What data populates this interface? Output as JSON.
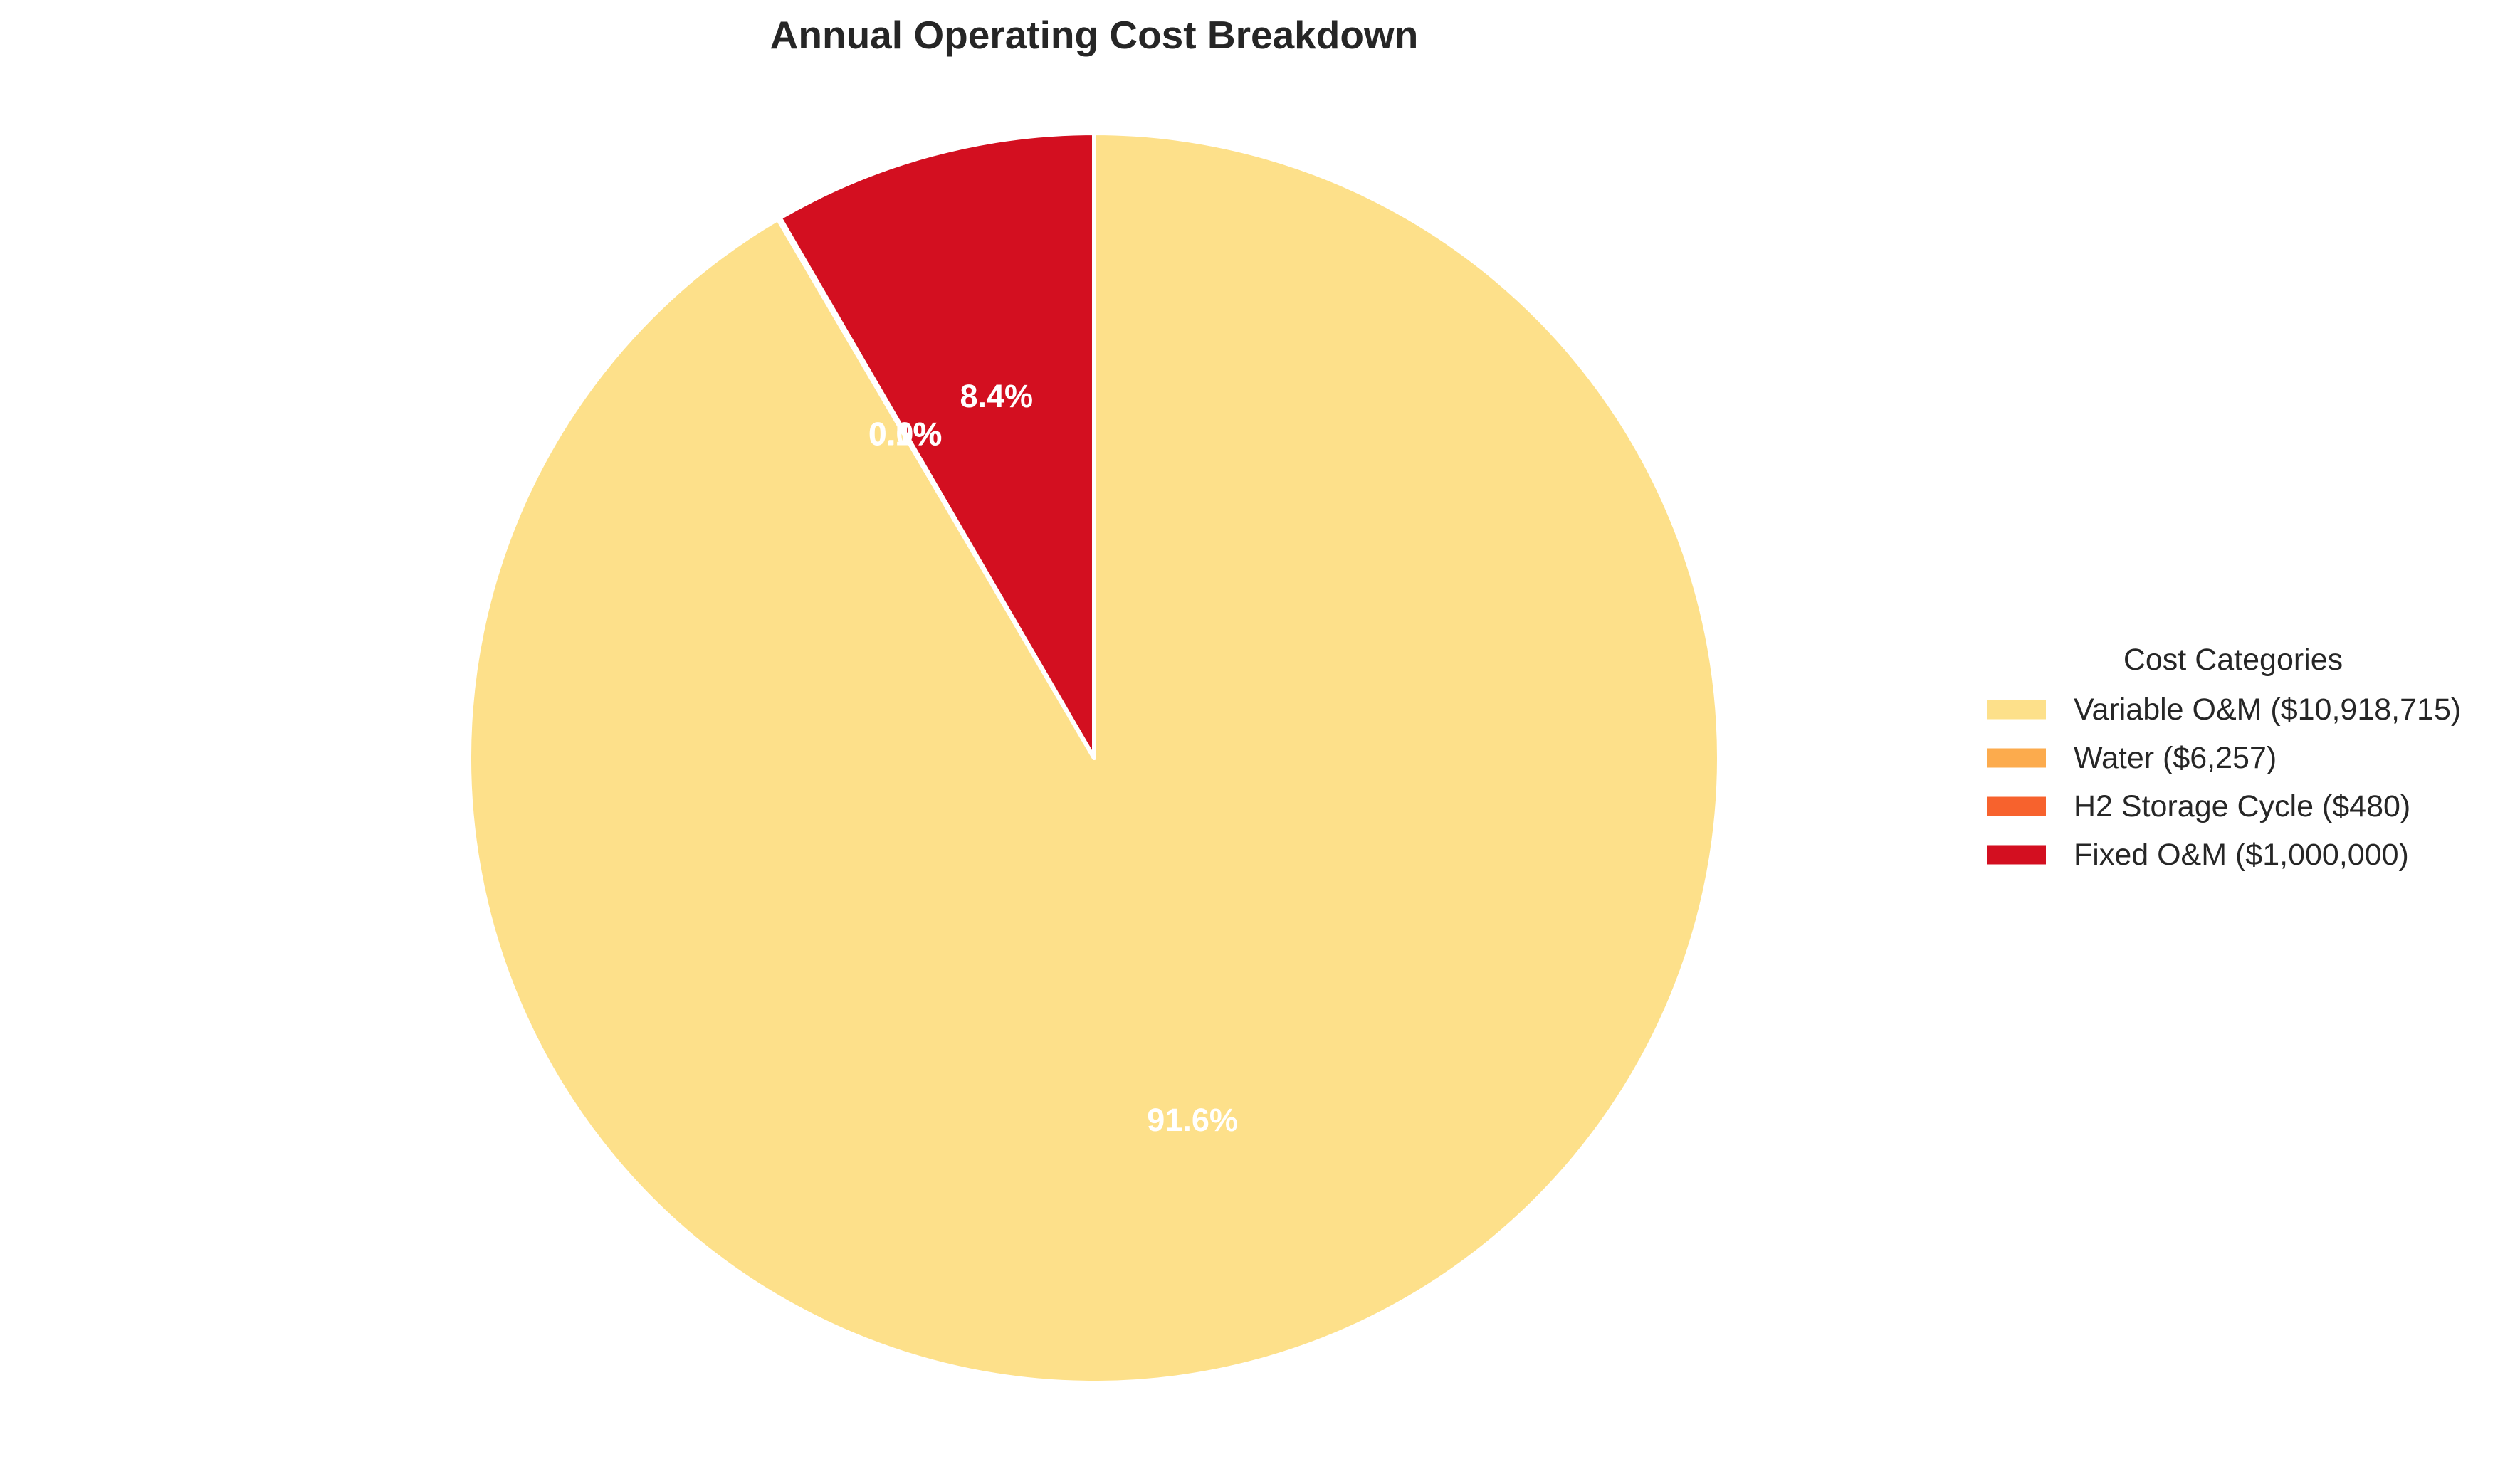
{
  "chart_data": {
    "type": "pie",
    "title": "Annual Operating Cost Breakdown",
    "legend_title": "Cost Categories",
    "legend_position": "right",
    "start_angle_deg": 90,
    "direction": "clockwise",
    "slices": [
      {
        "category": "Variable O&M",
        "value": 10918715,
        "label": "Variable O&M ($10,918,715)",
        "pct_text": "91.6%",
        "color": "#fde08a"
      },
      {
        "category": "Water",
        "value": 6257,
        "label": "Water ($6,257)",
        "pct_text": "0.1%",
        "color": "#fcab4d"
      },
      {
        "category": "H2 Storage Cycle",
        "value": 480,
        "label": "H2 Storage Cycle ($480)",
        "pct_text": "0.0%",
        "color": "#f7622d"
      },
      {
        "category": "Fixed O&M",
        "value": 1000000,
        "label": "Fixed O&M ($1,000,000)",
        "pct_text": "8.4%",
        "color": "#d30f20"
      }
    ]
  }
}
